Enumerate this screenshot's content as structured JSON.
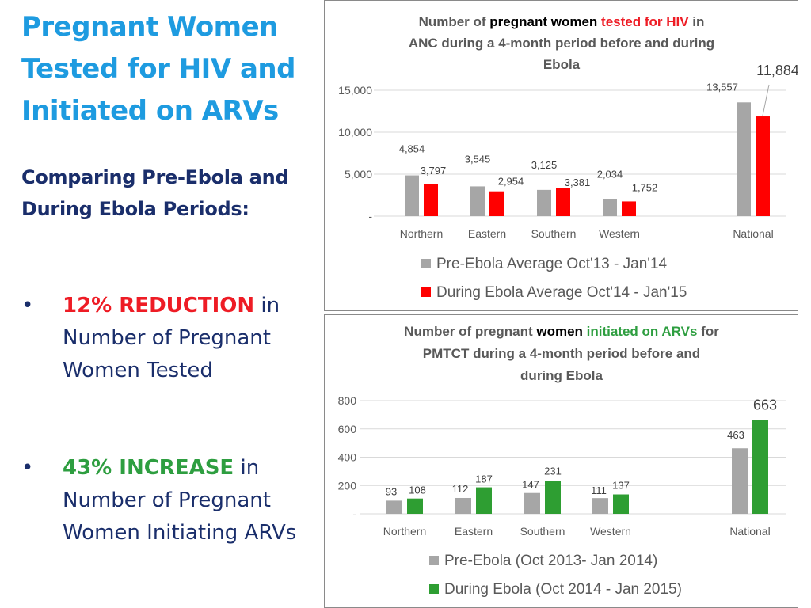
{
  "left": {
    "title": "Pregnant Women Tested for HIV and Initiated on ARVs",
    "subtitle": "Comparing Pre-Ebola and During Ebola Periods:",
    "bullets": [
      {
        "dot": "•",
        "keyword": "12% REDUCTION",
        "rest": " in Number of Pregnant Women Tested",
        "color": "#ee1c25"
      },
      {
        "dot": "•",
        "keyword": "43% INCREASE",
        "rest": " in Number of Pregnant Women Initiating ARVs",
        "color": "#2e9e40"
      }
    ]
  },
  "chart_data": [
    {
      "type": "bar",
      "title": "Number of pregnant women tested for HIV in ANC during a 4-month period before and during Ebola",
      "title_parts": {
        "line1": [
          "Number of ",
          "pregnant women",
          " ",
          "tested for HIV",
          " in"
        ],
        "line2": "ANC during a 4-month period before and during",
        "line3": "Ebola"
      },
      "categories": [
        "Northern",
        "Eastern",
        "Southern",
        "Western",
        "National"
      ],
      "series": [
        {
          "name": "Pre-Ebola Average Oct'13 - Jan'14",
          "color": "#a6a6a6",
          "values": [
            4854,
            3545,
            3125,
            2034,
            13557
          ]
        },
        {
          "name": "During Ebola Average Oct'14 - Jan'15",
          "color": "#ff0000",
          "values": [
            3797,
            2954,
            3381,
            1752,
            11884
          ]
        }
      ],
      "value_labels": [
        [
          "4,854",
          "3,545",
          "3,125",
          "2,034",
          "13,557"
        ],
        [
          "3,797",
          "2,954",
          "3,381",
          "1,752",
          "11,884"
        ]
      ],
      "yticks": [
        {
          "value": 0,
          "label": "-"
        },
        {
          "value": 5000,
          "label": "5,000"
        },
        {
          "value": 10000,
          "label": "10,000"
        },
        {
          "value": 15000,
          "label": "15,000"
        }
      ],
      "ylim": [
        0,
        15000
      ],
      "grid": true,
      "legend": "bottom"
    },
    {
      "type": "bar",
      "title": "Number of pregnant women initiated on ARVs for PMTCT during a 4-month period before and during Ebola",
      "title_parts": {
        "line1": [
          "Number of pregnant ",
          "women",
          " ",
          "initiated on ARVs",
          " for"
        ],
        "line2": "PMTCT during a 4-month period before and",
        "line3": "during Ebola"
      },
      "categories": [
        "Northern",
        "Eastern",
        "Southern",
        "Western",
        "National"
      ],
      "series": [
        {
          "name": "Pre-Ebola (Oct 2013- Jan 2014)",
          "color": "#a6a6a6",
          "values": [
            93,
            112,
            147,
            111,
            463
          ]
        },
        {
          "name": "During Ebola (Oct 2014 - Jan 2015)",
          "color": "#2e9e32",
          "values": [
            108,
            187,
            231,
            137,
            663
          ]
        }
      ],
      "value_labels": [
        [
          "93",
          "112",
          "147",
          "111",
          "463"
        ],
        [
          "108",
          "187",
          "231",
          "137",
          "663"
        ]
      ],
      "yticks": [
        {
          "value": 0,
          "label": "-"
        },
        {
          "value": 200,
          "label": "200"
        },
        {
          "value": 400,
          "label": "400"
        },
        {
          "value": 600,
          "label": "600"
        },
        {
          "value": 800,
          "label": "800"
        }
      ],
      "ylim": [
        0,
        800
      ],
      "grid": true,
      "legend": "bottom"
    }
  ]
}
